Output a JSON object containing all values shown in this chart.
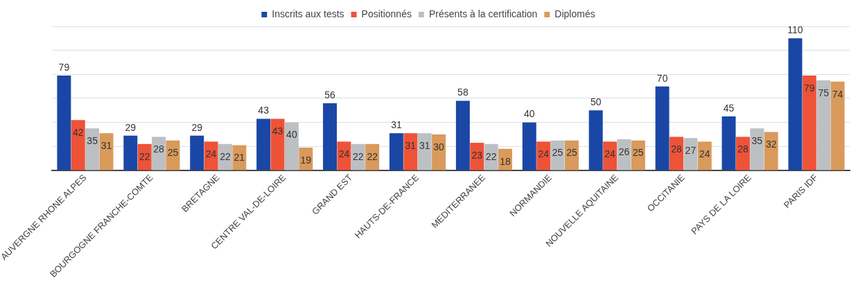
{
  "chart_data": {
    "type": "bar",
    "categories": [
      "AUVERGNE RHONE ALPES",
      "BOURGOGNE FRANCHE-COMTE",
      "BRETAGNE",
      "CENTRE VAL-DE-LOIRE",
      "GRAND EST",
      "HAUTS-DE-FRANCE",
      "MEDITERRANEE",
      "NORMANDIE",
      "NOUVELLE AQUITAINE",
      "OCCITANIE",
      "PAYS DE LA LOIRE",
      "PARIS IDF"
    ],
    "series": [
      {
        "name": "Inscrits aux tests",
        "color": "#1a47a6",
        "values": [
          79,
          29,
          29,
          43,
          56,
          31,
          58,
          40,
          50,
          70,
          45,
          110
        ]
      },
      {
        "name": "Positionnés",
        "color": "#ee5338",
        "values": [
          42,
          22,
          24,
          43,
          24,
          31,
          23,
          24,
          24,
          28,
          28,
          79
        ]
      },
      {
        "name": "Présents à la certification",
        "color": "#bcc0c3",
        "values": [
          35,
          28,
          22,
          40,
          22,
          31,
          22,
          25,
          26,
          27,
          35,
          75
        ]
      },
      {
        "name": "Diplomés",
        "color": "#d99a5b",
        "values": [
          31,
          25,
          21,
          19,
          22,
          30,
          18,
          25,
          25,
          24,
          32,
          74
        ]
      }
    ],
    "ylim": [
      0,
      120
    ],
    "yticks": [
      {
        "value": 0,
        "label": null
      },
      {
        "value": 20,
        "label": null
      },
      {
        "value": 40,
        "label": null
      },
      {
        "value": 60,
        "label": null
      },
      {
        "value": 80,
        "label": null
      },
      {
        "value": 100,
        "label": null
      },
      {
        "value": 120,
        "label": null
      }
    ],
    "grid": "y",
    "tick_labels": "x",
    "legend": "top",
    "data_labels": true
  }
}
